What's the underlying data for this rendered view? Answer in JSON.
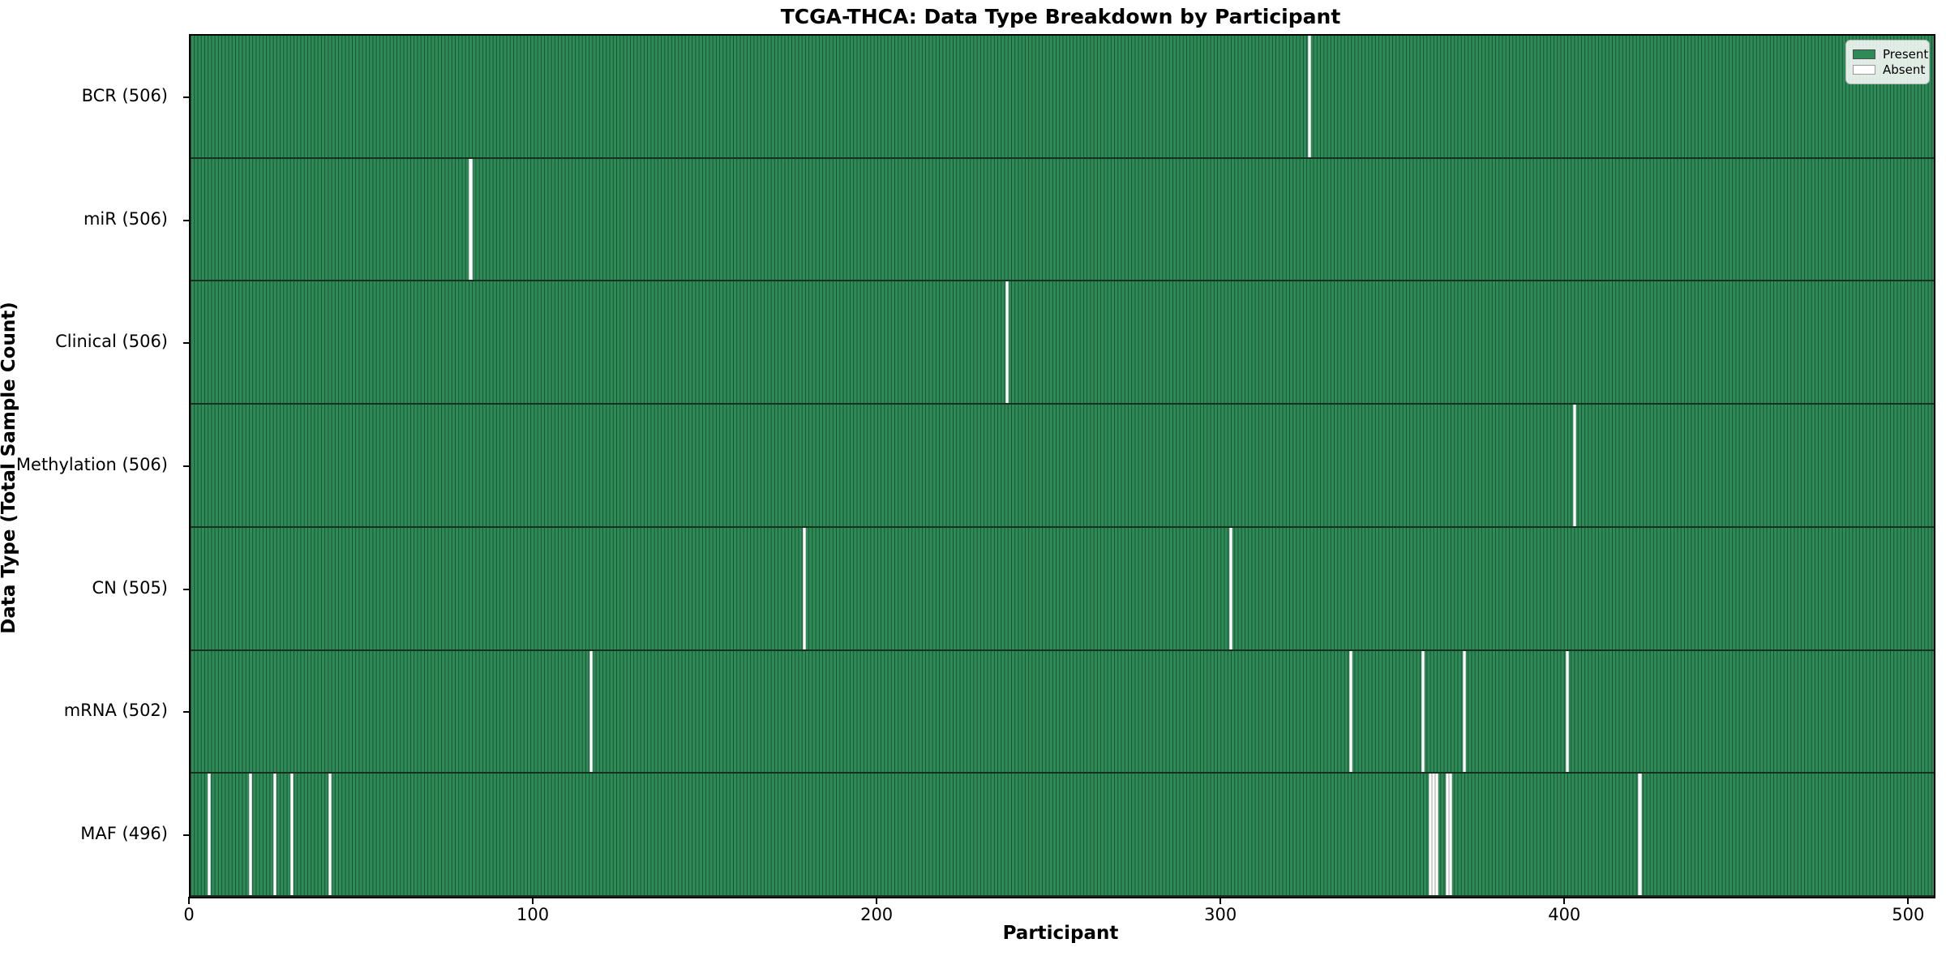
{
  "colors": {
    "present": "#2e8b57",
    "absent": "#ffffff",
    "bar_edge": "rgba(10,35,22,0.55)",
    "frame": "#000000",
    "background": "#ffffff"
  },
  "legend": {
    "present_label": "Present",
    "absent_label": "Absent",
    "position": "upper right"
  },
  "chart_data": {
    "type": "heatmap",
    "title": "TCGA-THCA: Data Type Breakdown by Participant",
    "xlabel": "Participant",
    "ylabel": "Data Type (Total Sample Count)",
    "total_participants": 507,
    "xlim": [
      0,
      507
    ],
    "x_ticks": [
      0,
      100,
      200,
      300,
      400,
      500
    ],
    "grid": false,
    "rows": [
      {
        "key": "bcr",
        "label": "BCR (506)",
        "present_count": 506,
        "absent_indices": [
          325
        ]
      },
      {
        "key": "mir",
        "label": "miR (506)",
        "present_count": 506,
        "absent_indices": [
          81
        ]
      },
      {
        "key": "clinical",
        "label": "Clinical (506)",
        "present_count": 506,
        "absent_indices": [
          237
        ]
      },
      {
        "key": "methylation",
        "label": "Methylation (506)",
        "present_count": 506,
        "absent_indices": [
          402
        ]
      },
      {
        "key": "cn",
        "label": "CN (505)",
        "present_count": 505,
        "absent_indices": [
          178,
          302
        ]
      },
      {
        "key": "mrna",
        "label": "mRNA (502)",
        "present_count": 502,
        "absent_indices": [
          116,
          337,
          358,
          370,
          400
        ]
      },
      {
        "key": "maf",
        "label": "MAF (496)",
        "present_count": 496,
        "absent_indices": [
          5,
          17,
          24,
          29,
          40,
          360,
          361,
          362,
          365,
          366,
          421
        ]
      }
    ]
  }
}
